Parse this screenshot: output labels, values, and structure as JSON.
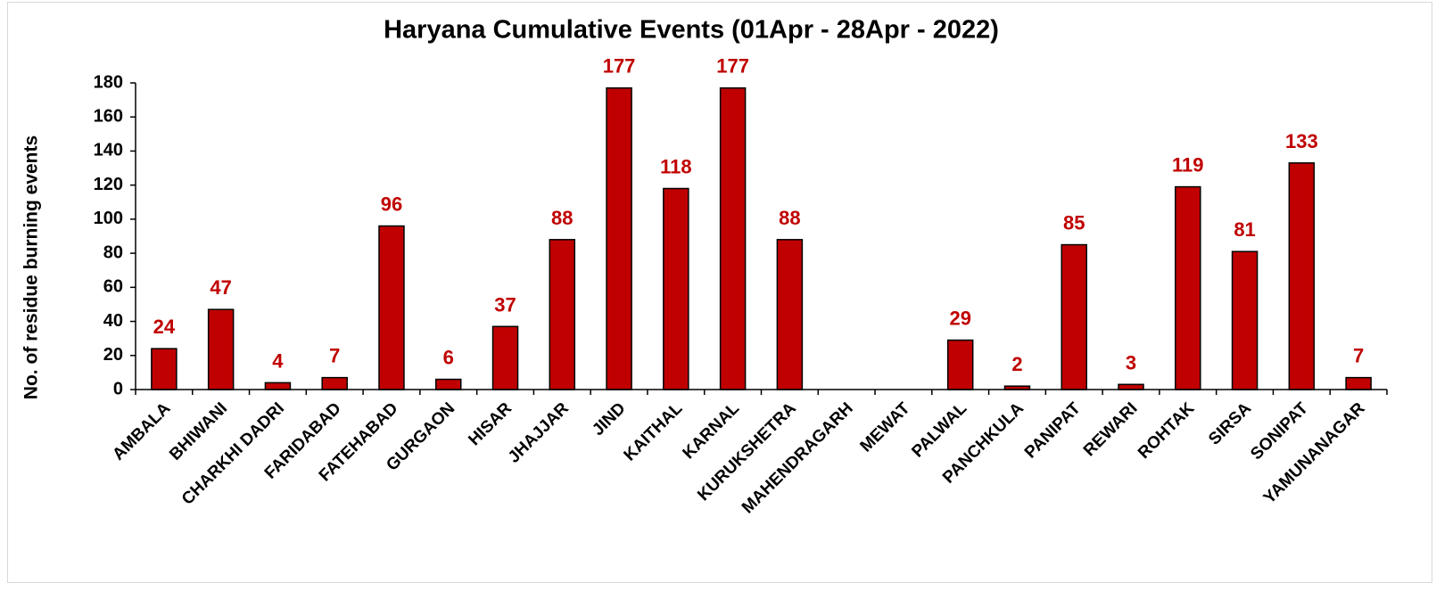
{
  "chart_data": {
    "type": "bar",
    "title": "Haryana Cumulative Events (01Apr - 28Apr - 2022)",
    "y_label": "No. of residue burning events",
    "categories": [
      "AMBALA",
      "BHIWANI",
      "CHARKHI DADRI",
      "FARIDABAD",
      "FATEHABAD",
      "GURGAON",
      "HISAR",
      "JHAJJAR",
      "JIND",
      "KAITHAL",
      "KARNAL",
      "KURUKSHETRA",
      "MAHENDRAGARH",
      "MEWAT",
      "PALWAL",
      "PANCHKULA",
      "PANIPAT",
      "REWARI",
      "ROHTAK",
      "SIRSA",
      "SONIPAT",
      "YAMUNANAGAR"
    ],
    "values": [
      24,
      47,
      4,
      7,
      96,
      6,
      37,
      88,
      177,
      118,
      177,
      88,
      null,
      null,
      29,
      2,
      85,
      3,
      119,
      81,
      133,
      7
    ],
    "color": "#c00000",
    "ylim": [
      0,
      180
    ],
    "yticks": [
      0,
      20,
      40,
      60,
      80,
      100,
      120,
      140,
      160,
      180
    ],
    "grid": false
  }
}
